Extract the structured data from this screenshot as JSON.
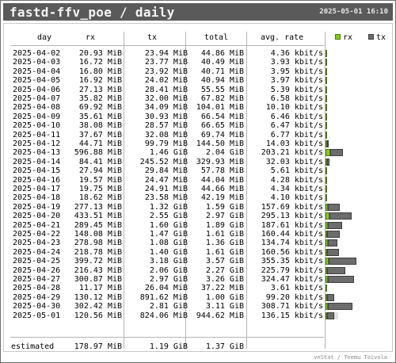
{
  "window": {
    "title": "fastd-ffv_poe / daily",
    "timestamp": "2025-05-01 16:10"
  },
  "table": {
    "headers": {
      "day": "day",
      "rx": "rx",
      "tx": "tx",
      "total": "total",
      "avg_rate": "avg. rate"
    },
    "legend": {
      "rx": "rx",
      "tx": "tx",
      "rx_color": "#85c928",
      "tx_color": "#6c6c6c"
    },
    "rows": [
      {
        "day": "2025-04-02",
        "rx": "20.93 MiB",
        "tx": "23.94 MiB",
        "total": "44.86 MiB",
        "rate": "4.36 kbit/s",
        "rx_frac": 0.003,
        "tx_frac": 0.003
      },
      {
        "day": "2025-04-03",
        "rx": "16.72 MiB",
        "tx": "23.77 MiB",
        "total": "40.49 MiB",
        "rate": "3.93 kbit/s",
        "rx_frac": 0.002,
        "tx_frac": 0.003
      },
      {
        "day": "2025-04-04",
        "rx": "16.80 MiB",
        "tx": "23.92 MiB",
        "total": "40.71 MiB",
        "rate": "3.95 kbit/s",
        "rx_frac": 0.002,
        "tx_frac": 0.003
      },
      {
        "day": "2025-04-05",
        "rx": "16.92 MiB",
        "tx": "24.02 MiB",
        "total": "40.94 MiB",
        "rate": "3.97 kbit/s",
        "rx_frac": 0.002,
        "tx_frac": 0.003
      },
      {
        "day": "2025-04-06",
        "rx": "27.13 MiB",
        "tx": "28.41 MiB",
        "total": "55.55 MiB",
        "rate": "5.39 kbit/s",
        "rx_frac": 0.004,
        "tx_frac": 0.004
      },
      {
        "day": "2025-04-07",
        "rx": "35.82 MiB",
        "tx": "32.00 MiB",
        "total": "67.82 MiB",
        "rate": "6.58 kbit/s",
        "rx_frac": 0.005,
        "tx_frac": 0.004
      },
      {
        "day": "2025-04-08",
        "rx": "69.92 MiB",
        "tx": "34.09 MiB",
        "total": "104.01 MiB",
        "rate": "10.10 kbit/s",
        "rx_frac": 0.009,
        "tx_frac": 0.004
      },
      {
        "day": "2025-04-09",
        "rx": "35.61 MiB",
        "tx": "30.93 MiB",
        "total": "66.54 MiB",
        "rate": "6.46 kbit/s",
        "rx_frac": 0.005,
        "tx_frac": 0.004
      },
      {
        "day": "2025-04-10",
        "rx": "38.08 MiB",
        "tx": "28.57 MiB",
        "total": "66.65 MiB",
        "rate": "6.47 kbit/s",
        "rx_frac": 0.005,
        "tx_frac": 0.004
      },
      {
        "day": "2025-04-11",
        "rx": "37.67 MiB",
        "tx": "32.08 MiB",
        "total": "69.74 MiB",
        "rate": "6.77 kbit/s",
        "rx_frac": 0.005,
        "tx_frac": 0.004
      },
      {
        "day": "2025-04-12",
        "rx": "44.71 MiB",
        "tx": "99.79 MiB",
        "total": "144.50 MiB",
        "rate": "14.03 kbit/s",
        "rx_frac": 0.006,
        "tx_frac": 0.013
      },
      {
        "day": "2025-04-13",
        "rx": "596.88 MiB",
        "tx": "1.46 GiB",
        "total": "2.04 GiB",
        "rate": "203.21 kbit/s",
        "rx_frac": 0.077,
        "tx_frac": 0.193
      },
      {
        "day": "2025-04-14",
        "rx": "84.41 MiB",
        "tx": "245.52 MiB",
        "total": "329.93 MiB",
        "rate": "32.03 kbit/s",
        "rx_frac": 0.011,
        "tx_frac": 0.031
      },
      {
        "day": "2025-04-15",
        "rx": "27.94 MiB",
        "tx": "29.84 MiB",
        "total": "57.78 MiB",
        "rate": "5.61 kbit/s",
        "rx_frac": 0.004,
        "tx_frac": 0.004
      },
      {
        "day": "2025-04-16",
        "rx": "19.57 MiB",
        "tx": "24.47 MiB",
        "total": "44.04 MiB",
        "rate": "4.28 kbit/s",
        "rx_frac": 0.003,
        "tx_frac": 0.003
      },
      {
        "day": "2025-04-17",
        "rx": "19.75 MiB",
        "tx": "24.91 MiB",
        "total": "44.66 MiB",
        "rate": "4.34 kbit/s",
        "rx_frac": 0.003,
        "tx_frac": 0.003
      },
      {
        "day": "2025-04-18",
        "rx": "18.62 MiB",
        "tx": "23.58 MiB",
        "total": "42.19 MiB",
        "rate": "4.10 kbit/s",
        "rx_frac": 0.002,
        "tx_frac": 0.003
      },
      {
        "day": "2025-04-19",
        "rx": "277.13 MiB",
        "tx": "1.32 GiB",
        "total": "1.59 GiB",
        "rate": "157.69 kbit/s",
        "rx_frac": 0.036,
        "tx_frac": 0.175
      },
      {
        "day": "2025-04-20",
        "rx": "433.51 MiB",
        "tx": "2.55 GiB",
        "total": "2.97 GiB",
        "rate": "295.13 kbit/s",
        "rx_frac": 0.056,
        "tx_frac": 0.338
      },
      {
        "day": "2025-04-21",
        "rx": "289.45 MiB",
        "tx": "1.60 GiB",
        "total": "1.89 GiB",
        "rate": "187.61 kbit/s",
        "rx_frac": 0.037,
        "tx_frac": 0.212
      },
      {
        "day": "2025-04-22",
        "rx": "148.08 MiB",
        "tx": "1.47 GiB",
        "total": "1.61 GiB",
        "rate": "160.44 kbit/s",
        "rx_frac": 0.019,
        "tx_frac": 0.195
      },
      {
        "day": "2025-04-23",
        "rx": "278.98 MiB",
        "tx": "1.08 GiB",
        "total": "1.36 GiB",
        "rate": "134.74 kbit/s",
        "rx_frac": 0.036,
        "tx_frac": 0.143
      },
      {
        "day": "2025-04-24",
        "rx": "218.78 MiB",
        "tx": "1.40 GiB",
        "total": "1.61 GiB",
        "rate": "160.56 kbit/s",
        "rx_frac": 0.028,
        "tx_frac": 0.186
      },
      {
        "day": "2025-04-25",
        "rx": "399.72 MiB",
        "tx": "3.18 GiB",
        "total": "3.57 GiB",
        "rate": "355.35 kbit/s",
        "rx_frac": 0.052,
        "tx_frac": 0.421
      },
      {
        "day": "2025-04-26",
        "rx": "216.43 MiB",
        "tx": "2.06 GiB",
        "total": "2.27 GiB",
        "rate": "225.79 kbit/s",
        "rx_frac": 0.028,
        "tx_frac": 0.273
      },
      {
        "day": "2025-04-27",
        "rx": "300.87 MiB",
        "tx": "2.97 GiB",
        "total": "3.26 GiB",
        "rate": "324.47 kbit/s",
        "rx_frac": 0.039,
        "tx_frac": 0.394
      },
      {
        "day": "2025-04-28",
        "rx": "11.17 MiB",
        "tx": "26.04 MiB",
        "total": "37.22 MiB",
        "rate": "3.61 kbit/s",
        "rx_frac": 0.001,
        "tx_frac": 0.003
      },
      {
        "day": "2025-04-29",
        "rx": "130.12 MiB",
        "tx": "891.62 MiB",
        "total": "1.00 GiB",
        "rate": "99.20 kbit/s",
        "rx_frac": 0.017,
        "tx_frac": 0.113
      },
      {
        "day": "2025-04-30",
        "rx": "302.42 MiB",
        "tx": "2.81 GiB",
        "total": "3.11 GiB",
        "rate": "308.71 kbit/s",
        "rx_frac": 0.039,
        "tx_frac": 0.373
      },
      {
        "day": "2025-05-01",
        "rx": "120.56 MiB",
        "tx": "824.06 MiB",
        "total": "944.62 MiB",
        "rate": "136.15 kbit/s",
        "rx_frac": 0.016,
        "tx_frac": 0.105,
        "est_frac": 0.19
      }
    ],
    "estimated": {
      "label": "estimated",
      "rx": "178.97 MiB",
      "tx": "1.19 GiB",
      "total": "1.37 GiB"
    }
  },
  "footer": {
    "credit": "vnStat / Teemu Toivola"
  }
}
